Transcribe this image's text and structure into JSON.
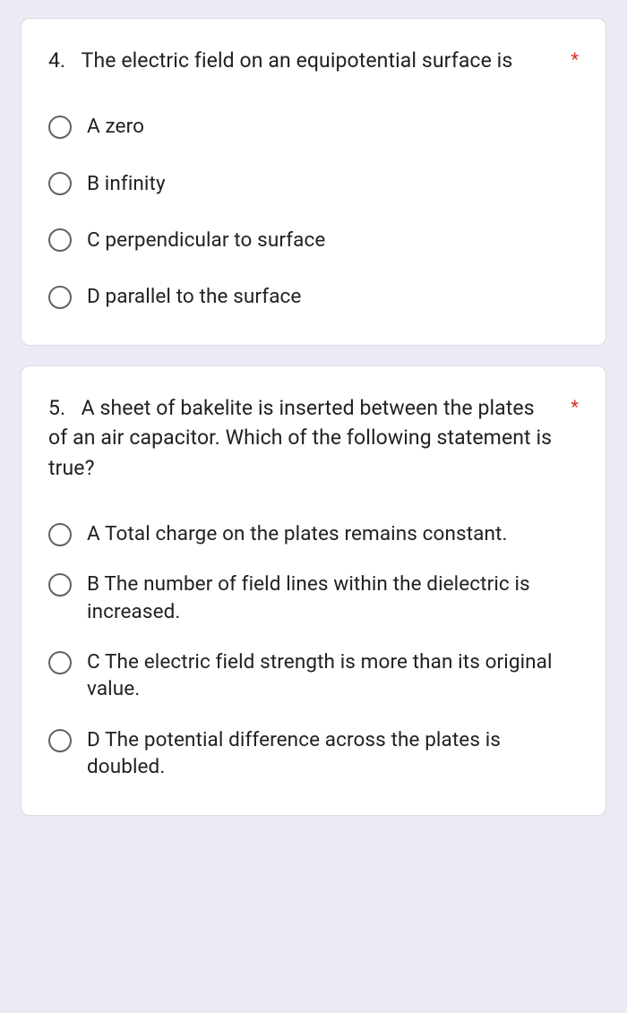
{
  "page": {
    "background_color": "#eceaf5",
    "card_background": "#ffffff",
    "card_border_color": "#dadce0",
    "text_color": "#202124",
    "radio_border_color": "#5f6368",
    "required_color": "#d93025"
  },
  "questions": [
    {
      "number": "4.",
      "text": "The electric field on an equipotential surface is",
      "required": true,
      "options": [
        {
          "label": "A  zero"
        },
        {
          "label": "B infinity"
        },
        {
          "label": "C  perpendicular to surface"
        },
        {
          "label": "D parallel to the surface"
        }
      ]
    },
    {
      "number": "5.",
      "text": "A sheet of bakelite is inserted between the plates of an air capacitor. Which of the following statement is true?",
      "required": true,
      "options": [
        {
          "label": "A Total charge on the plates remains constant."
        },
        {
          "label": "B The number of field lines within the dielectric is increased."
        },
        {
          "label": "C The electric field strength is more than its original value."
        },
        {
          "label": "D The potential difference across the plates is doubled."
        }
      ]
    }
  ]
}
